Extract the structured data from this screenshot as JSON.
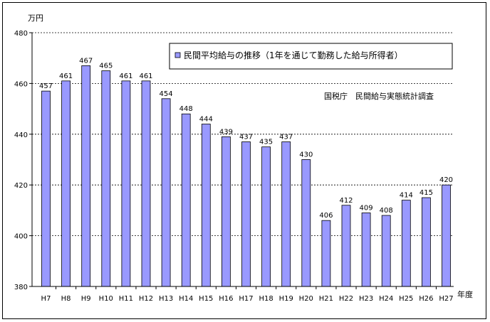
{
  "chart_data": {
    "type": "bar",
    "categories": [
      "H7",
      "H8",
      "H9",
      "H10",
      "H11",
      "H12",
      "H13",
      "H14",
      "H15",
      "H16",
      "H17",
      "H18",
      "H19",
      "H20",
      "H21",
      "H22",
      "H23",
      "H24",
      "H25",
      "H26",
      "H27"
    ],
    "series": [
      {
        "name": "民間平均給与の推移（1年を通じて勤務した給与所得者）",
        "values": [
          457,
          461,
          467,
          465,
          461,
          461,
          454,
          448,
          444,
          439,
          437,
          435,
          437,
          430,
          406,
          412,
          409,
          408,
          414,
          415,
          420
        ]
      }
    ],
    "ylim": [
      380,
      480
    ],
    "yticks": [
      380,
      400,
      420,
      440,
      460,
      480
    ],
    "ylabel": "万円",
    "xlabel": "年度",
    "grid": true,
    "grid_style": "dashed",
    "legend_position": "top-right",
    "bar_color": "#9999ff",
    "annotation": "国税庁　民間給与実態統計調査"
  }
}
